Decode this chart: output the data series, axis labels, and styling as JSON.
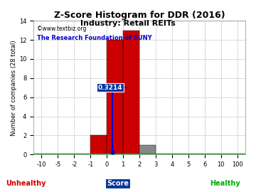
{
  "title": "Z-Score Histogram for DDR (2016)",
  "subtitle": "Industry: Retail REITs",
  "watermark1": "©www.textbiz.org",
  "watermark2": "The Research Foundation of SUNY",
  "ylabel": "Number of companies (28 total)",
  "xlabel_center": "Score",
  "xlabel_left": "Unhealthy",
  "xlabel_right": "Healthy",
  "z_score_value": "0.3214",
  "xtick_labels": [
    "-10",
    "-5",
    "-2",
    "-1",
    "0",
    "1",
    "2",
    "3",
    "4",
    "5",
    "6",
    "10",
    "100"
  ],
  "xtick_positions": [
    0,
    1,
    2,
    3,
    4,
    5,
    6,
    7,
    8,
    9,
    10,
    11,
    12
  ],
  "bar_data": [
    {
      "tick_idx": 3,
      "height": 2,
      "color": "#cc0000"
    },
    {
      "tick_idx": 4,
      "height": 12,
      "color": "#cc0000"
    },
    {
      "tick_idx": 5,
      "height": 13,
      "color": "#cc0000"
    },
    {
      "tick_idx": 6,
      "height": 1,
      "color": "#888888"
    }
  ],
  "yticks": [
    0,
    2,
    4,
    6,
    8,
    10,
    12,
    14
  ],
  "ylim": [
    0,
    14
  ],
  "xlim": [
    -0.5,
    12.5
  ],
  "vline_x_tick": 4.3214,
  "hline_y": 7,
  "hline_x_start": 3.8,
  "hline_x_end": 5.2,
  "background_color": "#ffffff",
  "grid_color": "#cccccc",
  "title_fontsize": 9,
  "subtitle_fontsize": 8,
  "axis_label_fontsize": 6,
  "tick_fontsize": 6,
  "watermark_fontsize1": 5.5,
  "watermark_fontsize2": 6,
  "unhealthy_color": "#cc0000",
  "healthy_color": "#00aa00",
  "score_bg_color": "#003399",
  "vline_color": "#0000cc",
  "hline_color": "#0000cc",
  "bottom_line_color": "#00aa00"
}
